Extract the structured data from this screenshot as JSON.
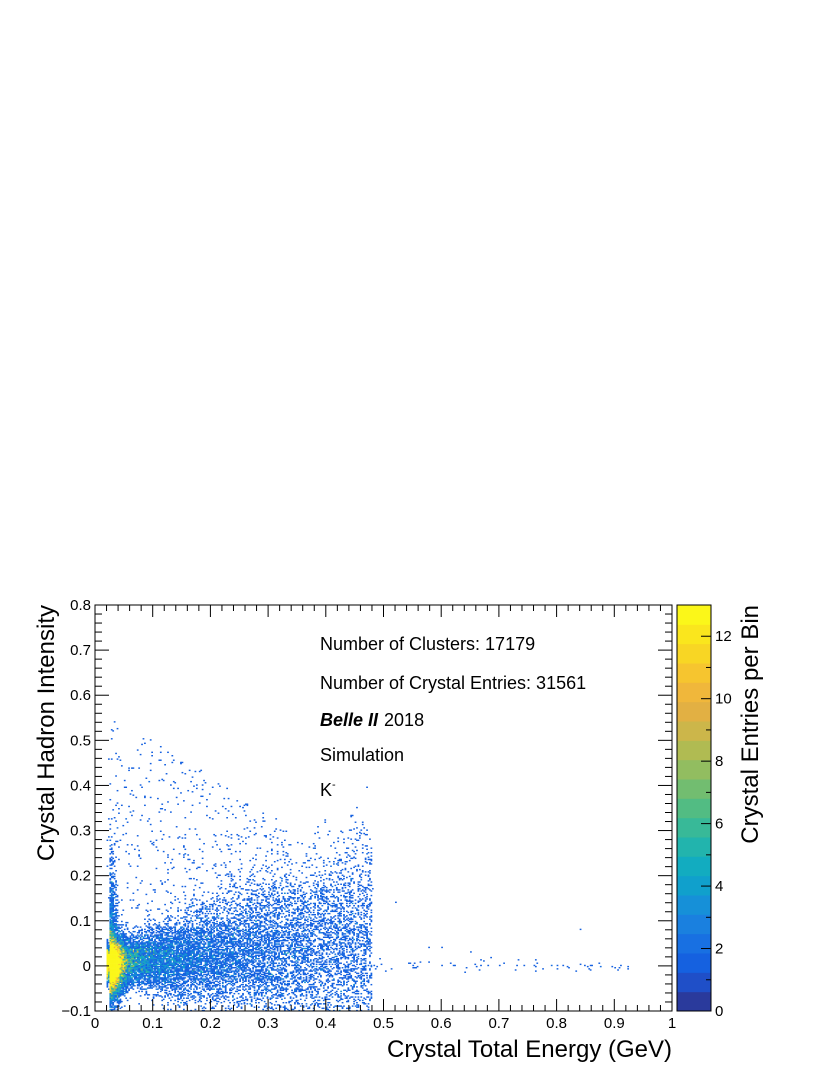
{
  "chart_data": {
    "type": "heatmap",
    "xlabel": "Crystal Total Energy (GeV)",
    "ylabel": "Crystal Hadron Intensity",
    "zlabel": "Crystal Entries per Bin",
    "xlim": [
      0,
      1
    ],
    "ylim": [
      -0.1,
      0.8
    ],
    "zlim": [
      0,
      13
    ],
    "x_ticks": [
      "0",
      "0.1",
      "0.2",
      "0.3",
      "0.4",
      "0.5",
      "0.6",
      "0.7",
      "0.8",
      "0.9",
      "1"
    ],
    "y_ticks": [
      "−0.1",
      "0",
      "0.1",
      "0.2",
      "0.3",
      "0.4",
      "0.5",
      "0.6",
      "0.7",
      "0.8"
    ],
    "z_ticks": [
      "0",
      "2",
      "4",
      "6",
      "8",
      "10",
      "12"
    ],
    "grid": false,
    "colormap": [
      "#2a3a9c",
      "#1f4fc8",
      "#1561e0",
      "#1870e2",
      "#1a80df",
      "#1690d8",
      "#10a0cc",
      "#12acc0",
      "#22b4ad",
      "#38b998",
      "#52bc83",
      "#72bd70",
      "#92bd60",
      "#b0bb52",
      "#ccb64a",
      "#e2b043",
      "#f0b73b",
      "#f6c52f",
      "#f8d624",
      "#fae61d",
      "#fbf719"
    ],
    "annotations": {
      "clusters": "Number of Clusters: 17179",
      "entries": "Number of Crystal Entries: 31561",
      "experiment": "Belle II",
      "year": "2018",
      "simulation": "Simulation",
      "particle": "K",
      "particle_charge": "-"
    },
    "distribution": {
      "core_x_range": [
        0.02,
        0.5
      ],
      "core_y_range": [
        -0.1,
        0.2
      ],
      "peak": {
        "x": 0.04,
        "y": 0.0,
        "z": 13
      },
      "sparse_tail": [
        {
          "x": 0.55,
          "y": 0.0
        },
        {
          "x": 0.6,
          "y": 0.0
        },
        {
          "x": 0.62,
          "y": 0.0
        },
        {
          "x": 0.68,
          "y": 0.0
        },
        {
          "x": 0.7,
          "y": 0.0
        },
        {
          "x": 0.73,
          "y": 0.0
        },
        {
          "x": 0.76,
          "y": 0.0
        },
        {
          "x": 0.79,
          "y": 0.0
        },
        {
          "x": 0.81,
          "y": 0.0
        },
        {
          "x": 0.84,
          "y": 0.08
        },
        {
          "x": 0.86,
          "y": 0.0
        },
        {
          "x": 0.91,
          "y": 0.0
        },
        {
          "x": 0.43,
          "y": 0.28
        },
        {
          "x": 0.48,
          "y": 0.17
        },
        {
          "x": 0.52,
          "y": 0.14
        },
        {
          "x": 0.58,
          "y": 0.04
        },
        {
          "x": 0.6,
          "y": 0.04
        },
        {
          "x": 0.65,
          "y": 0.03
        }
      ]
    }
  }
}
